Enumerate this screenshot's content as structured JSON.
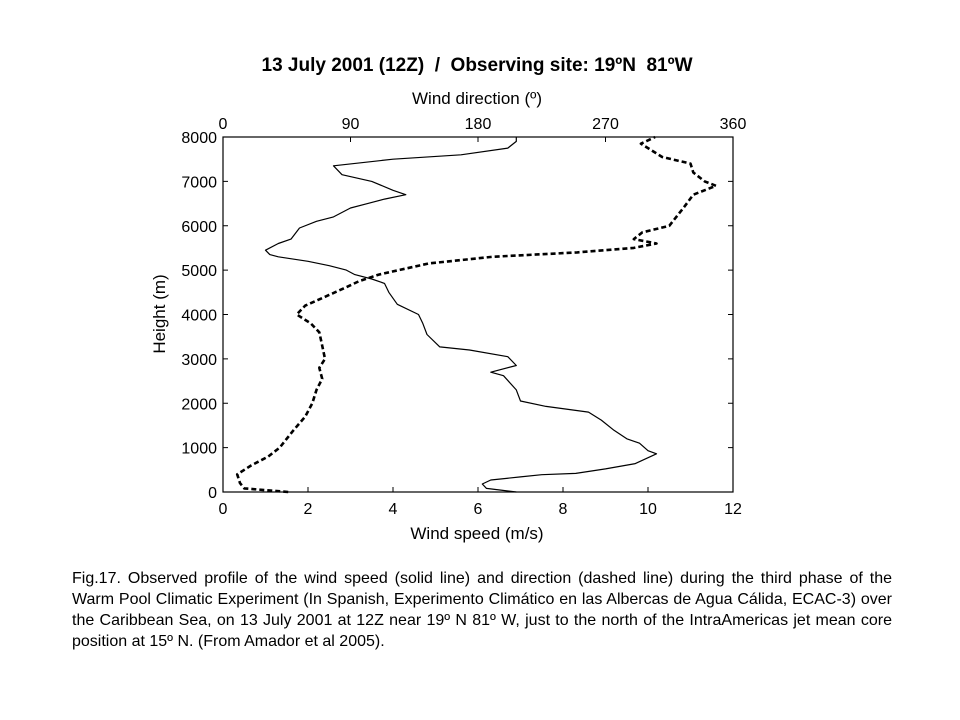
{
  "chart_data": {
    "type": "line",
    "title": "13 July 2001 (12Z)  /  Observing site: 19ºN  81ºW",
    "xlabel": "Wind speed (m/s)",
    "x2label": "Wind direction (º)",
    "ylabel": "Height (m)",
    "xlim": [
      0,
      12
    ],
    "x2lim": [
      0,
      360
    ],
    "ylim": [
      0,
      8000
    ],
    "xticks": [
      "0",
      "2",
      "4",
      "6",
      "8",
      "10",
      "12"
    ],
    "x2ticks": [
      "0",
      "90",
      "180",
      "270",
      "360"
    ],
    "yticks": [
      "0",
      "1000",
      "2000",
      "3000",
      "4000",
      "5000",
      "6000",
      "7000",
      "8000"
    ],
    "grid": false,
    "series": [
      {
        "name": "Wind speed",
        "axis": "bottom",
        "style": "solid",
        "points": [
          [
            6.9,
            0
          ],
          [
            6.2,
            80
          ],
          [
            6.1,
            180
          ],
          [
            6.3,
            270
          ],
          [
            7.0,
            340
          ],
          [
            7.5,
            390
          ],
          [
            8.3,
            420
          ],
          [
            9.0,
            520
          ],
          [
            9.7,
            640
          ],
          [
            10.2,
            860
          ],
          [
            10.0,
            930
          ],
          [
            9.8,
            1100
          ],
          [
            9.5,
            1200
          ],
          [
            9.2,
            1390
          ],
          [
            8.9,
            1620
          ],
          [
            8.6,
            1800
          ],
          [
            7.6,
            1930
          ],
          [
            7.0,
            2050
          ],
          [
            6.9,
            2300
          ],
          [
            6.6,
            2620
          ],
          [
            6.3,
            2700
          ],
          [
            6.9,
            2850
          ],
          [
            6.7,
            3050
          ],
          [
            5.8,
            3200
          ],
          [
            5.1,
            3270
          ],
          [
            4.8,
            3550
          ],
          [
            4.7,
            3800
          ],
          [
            4.6,
            4000
          ],
          [
            4.1,
            4230
          ],
          [
            3.9,
            4500
          ],
          [
            3.8,
            4700
          ],
          [
            3.5,
            4800
          ],
          [
            3.1,
            4900
          ],
          [
            2.9,
            5000
          ],
          [
            2.5,
            5100
          ],
          [
            2.0,
            5200
          ],
          [
            1.3,
            5300
          ],
          [
            1.1,
            5350
          ],
          [
            1.0,
            5450
          ],
          [
            1.3,
            5600
          ],
          [
            1.6,
            5700
          ],
          [
            1.8,
            5950
          ],
          [
            2.2,
            6100
          ],
          [
            2.6,
            6200
          ],
          [
            3.0,
            6400
          ],
          [
            3.4,
            6500
          ],
          [
            3.8,
            6600
          ],
          [
            4.3,
            6700
          ],
          [
            4.0,
            6800
          ],
          [
            3.5,
            7000
          ],
          [
            2.8,
            7150
          ],
          [
            2.6,
            7350
          ],
          [
            4.0,
            7500
          ],
          [
            5.6,
            7600
          ],
          [
            6.7,
            7750
          ],
          [
            6.9,
            7900
          ],
          [
            6.9,
            8000
          ]
        ]
      },
      {
        "name": "Wind direction",
        "axis": "top",
        "style": "dashed",
        "points": [
          [
            46,
            0
          ],
          [
            15,
            80
          ],
          [
            12,
            200
          ],
          [
            10,
            400
          ],
          [
            20,
            600
          ],
          [
            32,
            800
          ],
          [
            40,
            1000
          ],
          [
            50,
            1400
          ],
          [
            58,
            1700
          ],
          [
            63,
            2000
          ],
          [
            66,
            2300
          ],
          [
            70,
            2550
          ],
          [
            68,
            2800
          ],
          [
            72,
            3000
          ],
          [
            70,
            3300
          ],
          [
            68,
            3600
          ],
          [
            62,
            3800
          ],
          [
            52,
            4000
          ],
          [
            58,
            4200
          ],
          [
            72,
            4400
          ],
          [
            86,
            4600
          ],
          [
            96,
            4750
          ],
          [
            110,
            4900
          ],
          [
            145,
            5150
          ],
          [
            190,
            5300
          ],
          [
            250,
            5400
          ],
          [
            290,
            5500
          ],
          [
            306,
            5600
          ],
          [
            290,
            5700
          ],
          [
            296,
            5850
          ],
          [
            315,
            6000
          ],
          [
            320,
            6200
          ],
          [
            325,
            6400
          ],
          [
            332,
            6700
          ],
          [
            348,
            6900
          ],
          [
            340,
            7000
          ],
          [
            332,
            7200
          ],
          [
            330,
            7400
          ],
          [
            310,
            7550
          ],
          [
            300,
            7750
          ],
          [
            295,
            7850
          ],
          [
            305,
            8000
          ]
        ]
      }
    ]
  },
  "caption": "Fig.17. Observed profile of the wind speed (solid line) and direction (dashed line) during the third phase of the Warm Pool Climatic Experiment (In Spanish, Experimento Climático en las Albercas de Agua Cálida, ECAC-3) over the Caribbean Sea, on 13 July 2001 at 12Z near 19º N 81º W, just to the north of the IntraAmericas jet mean core position at 15º N. (From Amador et al 2005)."
}
